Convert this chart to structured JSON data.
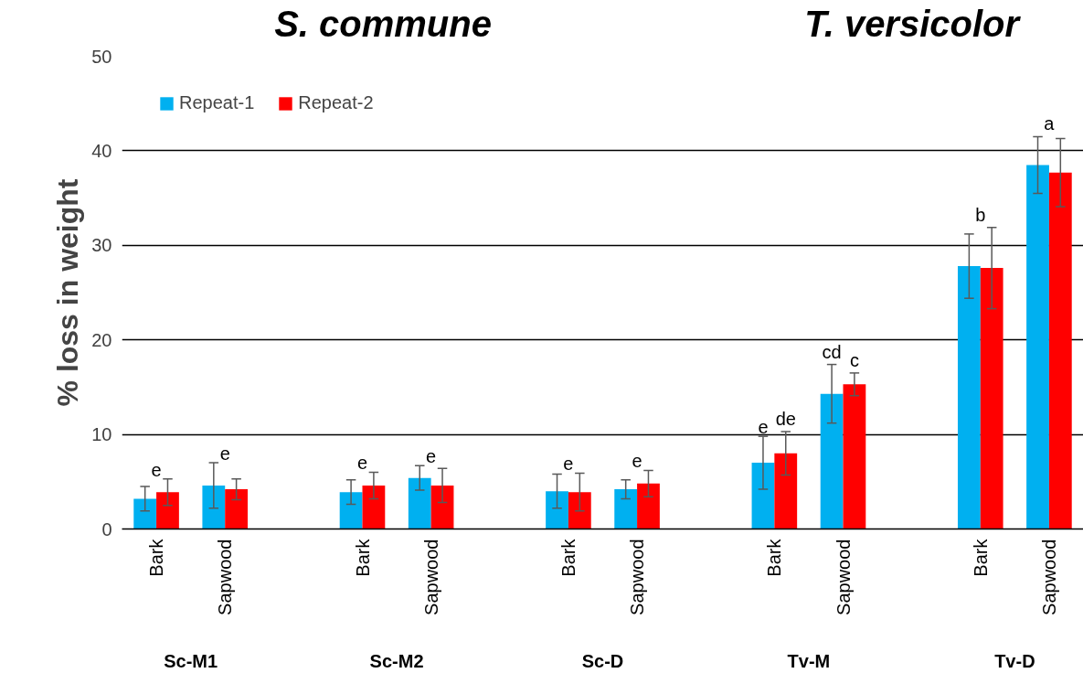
{
  "chart_data": {
    "type": "bar",
    "ylabel": "% loss in weight",
    "categories": [
      "Bark",
      "Sapwood",
      null,
      "Bark",
      "Sapwood",
      null,
      "Bark",
      "Sapwood",
      null,
      "Bark",
      "Sapwood",
      null,
      "Bark",
      "Sapwood"
    ],
    "series": [
      {
        "name": "Repeat-1",
        "color": "#00b0f0",
        "values": [
          3.2,
          4.6,
          null,
          3.9,
          5.4,
          null,
          4.0,
          4.2,
          null,
          7.0,
          14.3,
          null,
          27.8,
          38.5
        ],
        "errors": [
          1.3,
          2.4,
          null,
          1.3,
          1.3,
          null,
          1.8,
          1.0,
          null,
          2.8,
          3.1,
          null,
          3.4,
          3.0
        ],
        "value_labels": [
          "e",
          "e",
          null,
          "e",
          "e",
          null,
          "e",
          "e",
          null,
          "e",
          "cd",
          null,
          "b",
          "a"
        ]
      },
      {
        "name": "Repeat-2",
        "color": "#ff0000",
        "values": [
          3.9,
          4.2,
          null,
          4.6,
          4.6,
          null,
          3.9,
          4.8,
          null,
          8.0,
          15.3,
          null,
          27.6,
          37.7
        ],
        "errors": [
          1.4,
          1.1,
          null,
          1.4,
          1.8,
          null,
          2.0,
          1.4,
          null,
          2.3,
          1.2,
          null,
          4.3,
          3.6
        ],
        "value_labels": [
          null,
          null,
          null,
          null,
          null,
          null,
          null,
          null,
          null,
          "de",
          "c",
          null,
          null,
          null
        ]
      }
    ],
    "ylim": [
      0,
      50
    ],
    "yticks": [
      0,
      10,
      20,
      30,
      40,
      50
    ],
    "grid": "y",
    "legend": "top left",
    "annotations": [
      "S. commune",
      "T. versicolor",
      "Sc-M1",
      "Sc-M2",
      "Sc-D",
      "Tv-M",
      "Tv-D"
    ]
  }
}
